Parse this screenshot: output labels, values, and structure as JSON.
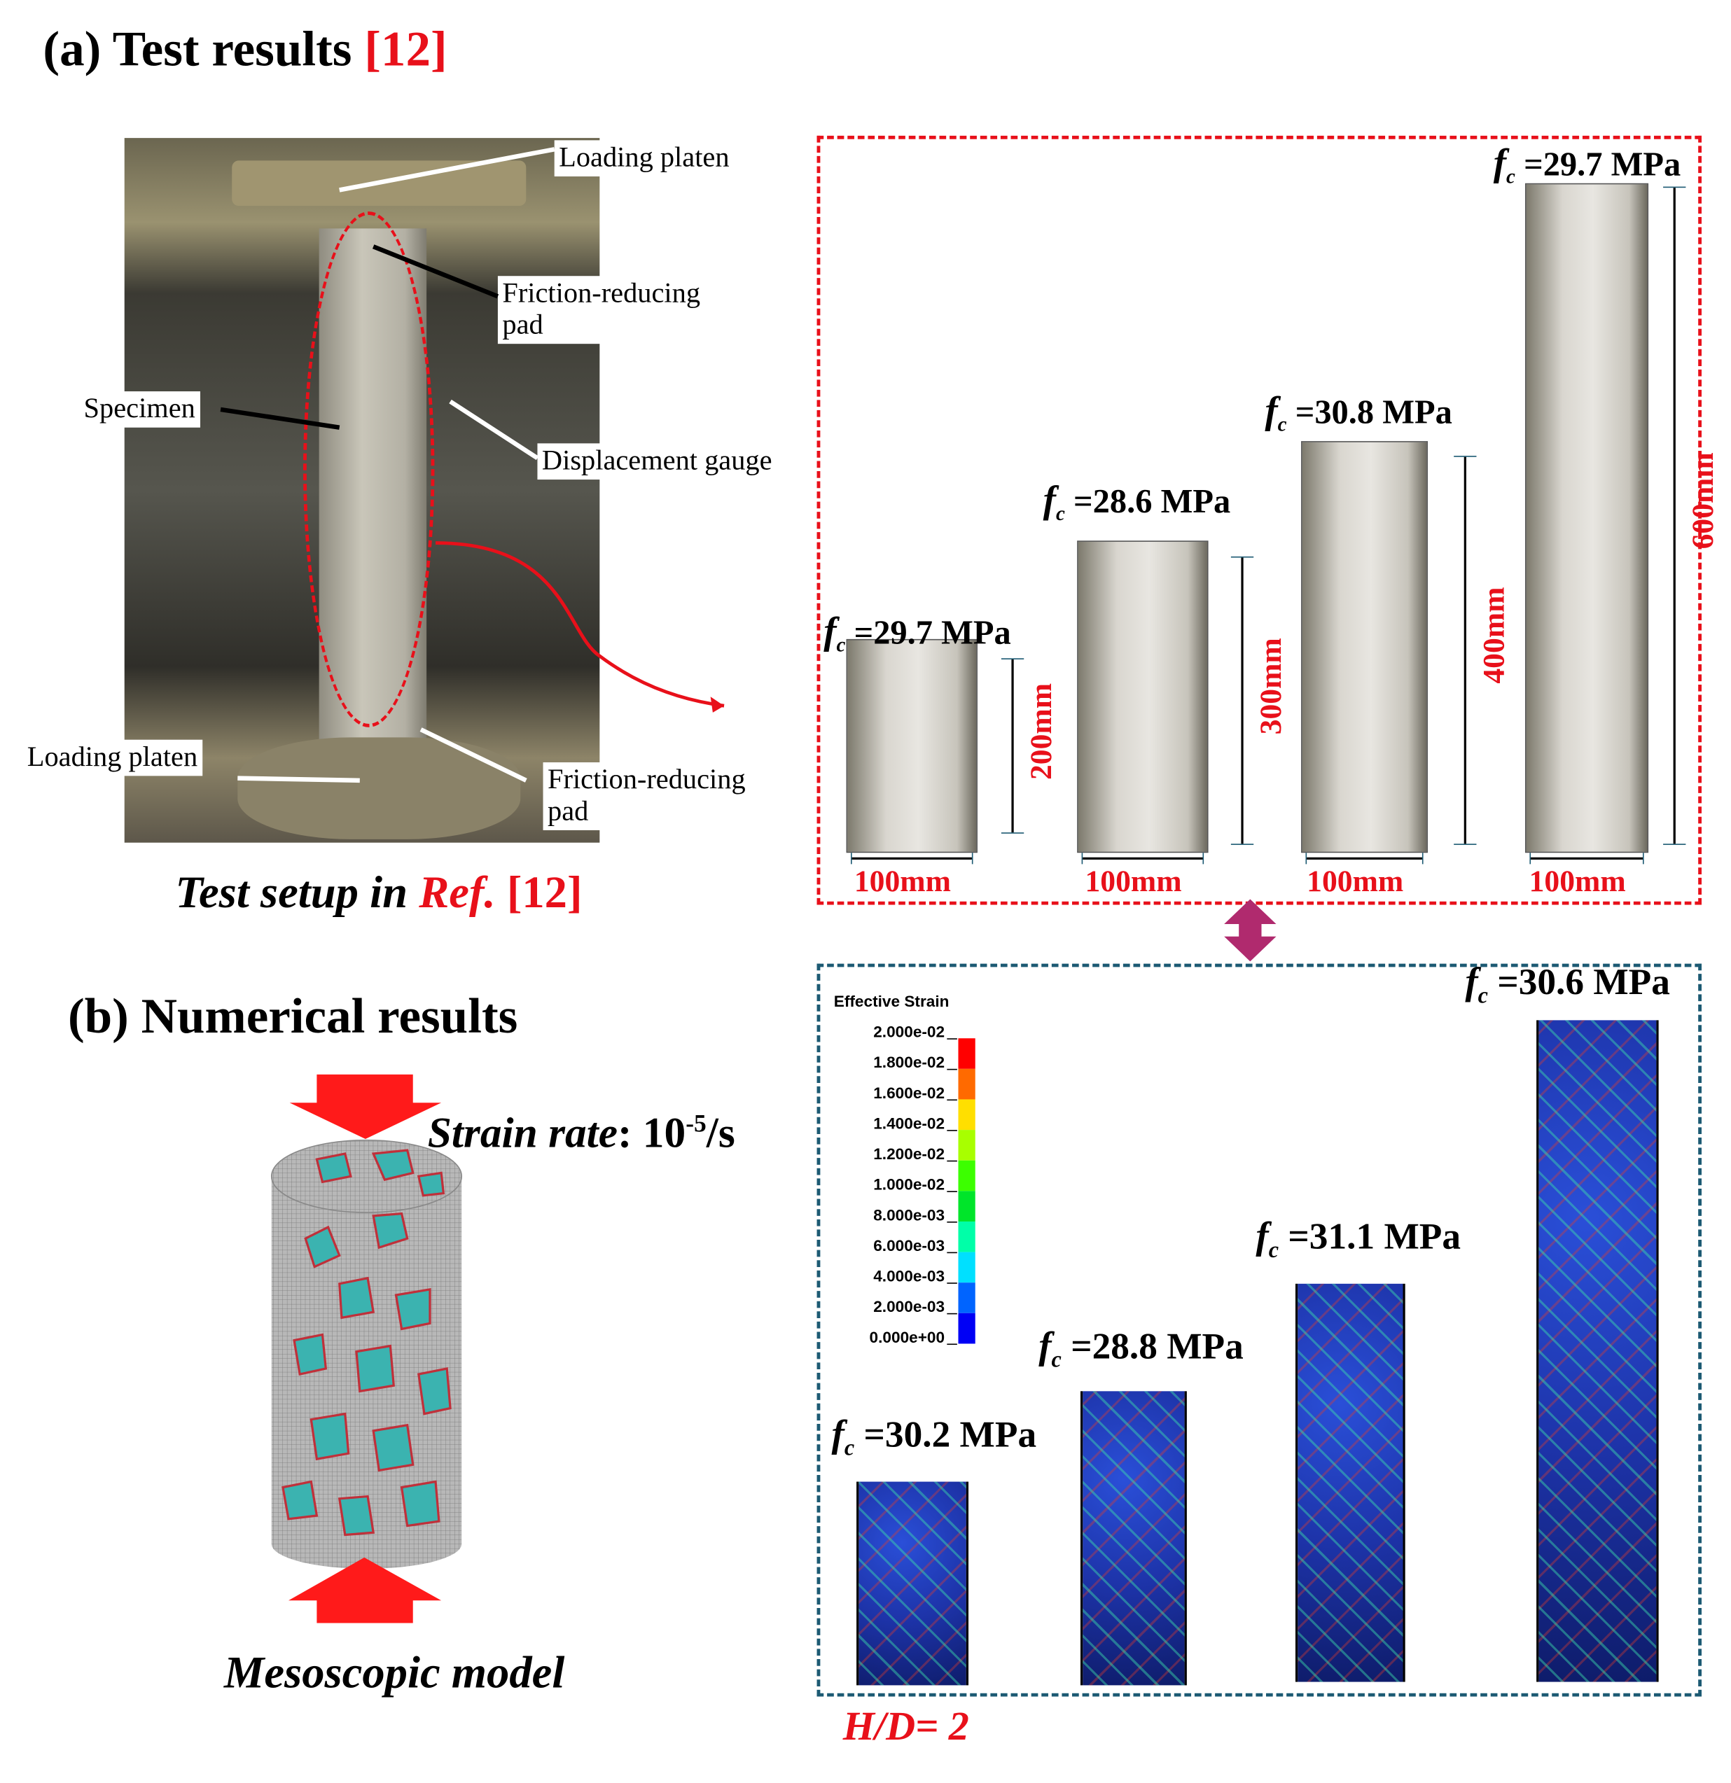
{
  "panel_a": {
    "title": "(a) Test results ",
    "ref": "[12]",
    "setup_labels": {
      "loading_platen_top": "Loading platen",
      "friction_pad_top_1": "Friction-reducing",
      "friction_pad_top_2": "pad",
      "specimen": "Specimen",
      "displacement_gauge": "Displacement gauge",
      "loading_platen_bottom": "Loading  platen",
      "friction_pad_bottom_1": "Friction-reducing",
      "friction_pad_bottom_2": "pad"
    },
    "caption_prefix": "Test setup in ",
    "caption_ref": "Ref.",
    "caption_num": " [12]",
    "box_color": "#e8101a",
    "specimens": [
      {
        "fc": "=29.7 MPa",
        "height": "200mm",
        "width": "100mm"
      },
      {
        "fc": "=28.6 MPa",
        "height": "300mm",
        "width": "100mm"
      },
      {
        "fc": "=30.8 MPa",
        "height": "400mm",
        "width": "100mm"
      },
      {
        "fc": "=29.7 MPa",
        "height": "600mm",
        "width": "100mm"
      }
    ]
  },
  "panel_b": {
    "title": "(b) Numerical results",
    "strain_rate_label": "Strain rate",
    "strain_rate_value": ": 10",
    "strain_rate_exp": "-5",
    "strain_rate_unit": "/s",
    "model_caption": "Mesoscopic model",
    "box_color": "#1c5a73",
    "legend": {
      "title": "Effective Strain",
      "values": [
        "2.000e-02",
        "1.800e-02",
        "1.600e-02",
        "1.400e-02",
        "1.200e-02",
        "1.000e-02",
        "8.000e-03",
        "6.000e-03",
        "4.000e-03",
        "2.000e-03",
        "0.000e+00"
      ],
      "colors": [
        "#ff0000",
        "#ff6a00",
        "#ffdf00",
        "#a8ff00",
        "#3cff00",
        "#00e52a",
        "#00ffa8",
        "#00e0ff",
        "#0064ff",
        "#0000f5"
      ]
    },
    "specimens": [
      {
        "fc": "=30.2 MPa"
      },
      {
        "fc": "=28.8 MPa"
      },
      {
        "fc": "=31.1 MPa"
      },
      {
        "fc": "=30.6 MPa"
      }
    ],
    "hd_label": "H/D= 2"
  }
}
